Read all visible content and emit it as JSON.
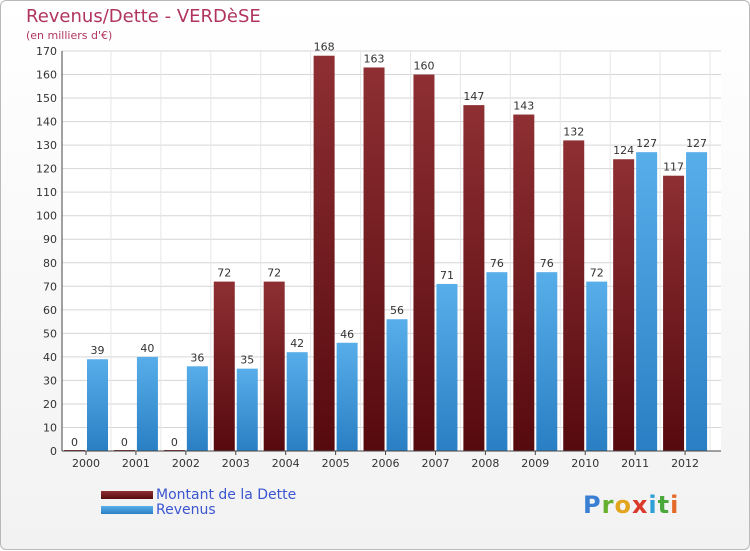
{
  "chart_data": {
    "type": "bar",
    "title": "Revenus/Dette - VERDèSE",
    "subtitle": "(en milliers d'€)",
    "categories": [
      "2000",
      "2001",
      "2002",
      "2003",
      "2004",
      "2005",
      "2006",
      "2007",
      "2008",
      "2009",
      "2010",
      "2011",
      "2012"
    ],
    "series": [
      {
        "name": "Montant de la Dette",
        "color": "#7a1a1f",
        "values": [
          0,
          0,
          0,
          72,
          72,
          168,
          163,
          160,
          147,
          143,
          132,
          124,
          117
        ]
      },
      {
        "name": "Revenus",
        "color": "#3f9de0",
        "values": [
          39,
          40,
          36,
          35,
          42,
          46,
          56,
          71,
          76,
          76,
          72,
          127,
          127
        ]
      }
    ],
    "ylim": [
      0,
      170
    ],
    "yticks": [
      0,
      10,
      20,
      30,
      40,
      50,
      60,
      70,
      80,
      90,
      100,
      110,
      120,
      130,
      140,
      150,
      160,
      170
    ],
    "grid": true,
    "legend_position": "bottom-left"
  },
  "branding": {
    "logo_letters": [
      "P",
      "r",
      "o",
      "x",
      "i",
      "t",
      "i"
    ]
  }
}
